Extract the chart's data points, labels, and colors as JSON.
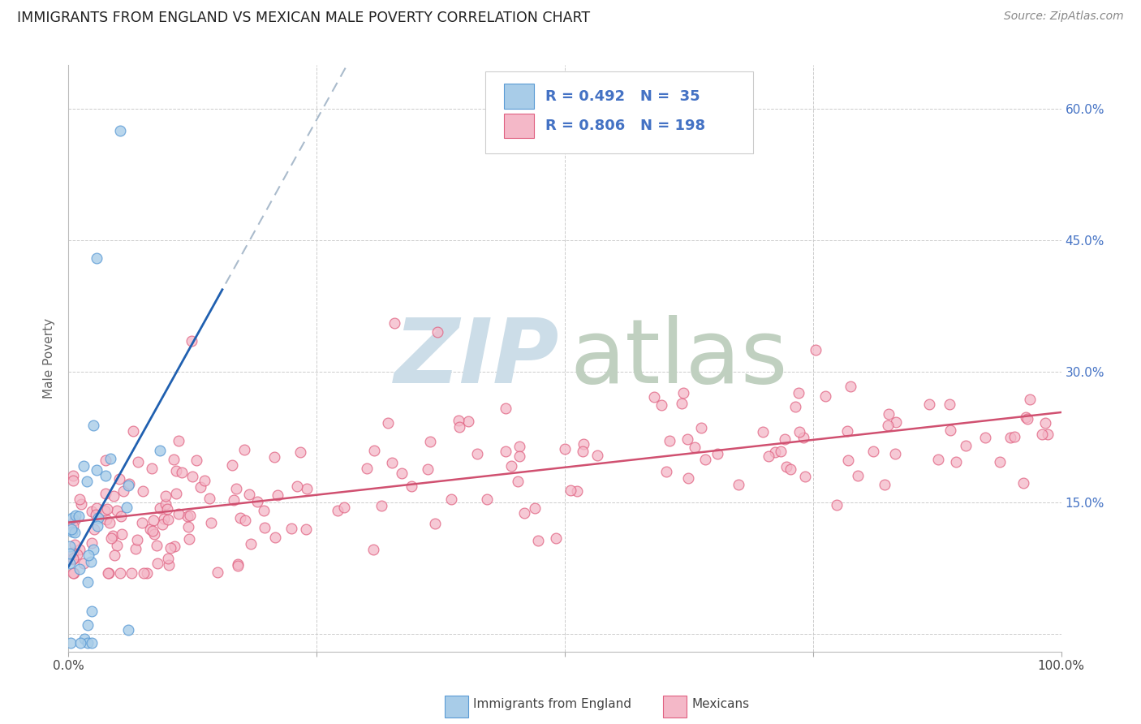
{
  "title": "IMMIGRANTS FROM ENGLAND VS MEXICAN MALE POVERTY CORRELATION CHART",
  "source": "Source: ZipAtlas.com",
  "ylabel": "Male Poverty",
  "xlim": [
    0,
    1.0
  ],
  "ylim": [
    -0.02,
    0.65
  ],
  "legend_R1": "0.492",
  "legend_N1": "35",
  "legend_R2": "0.806",
  "legend_N2": "198",
  "color_england_fill": "#a8cce8",
  "color_england_edge": "#5b9bd5",
  "color_mexico_fill": "#f4b8c8",
  "color_mexico_edge": "#e06080",
  "color_england_line": "#2060b0",
  "color_mexico_line": "#d05070",
  "color_dash": "#aabbcc",
  "color_blue_text": "#4472c4",
  "color_grid": "#cccccc",
  "background_color": "#ffffff",
  "watermark_zip_color": "#ccdde8",
  "watermark_atlas_color": "#c0d0c0",
  "eng_seed": 12345,
  "mex_seed": 99999
}
